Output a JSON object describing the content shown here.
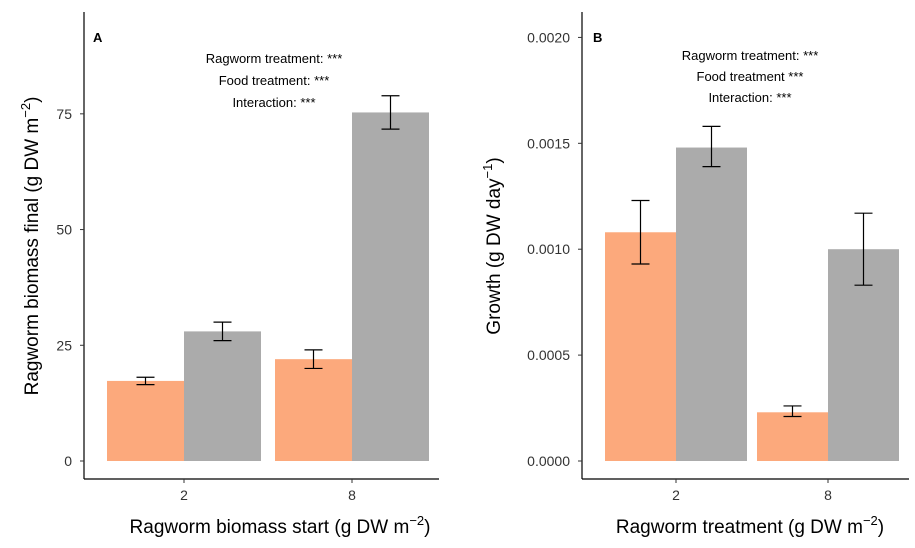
{
  "chart_data": [
    {
      "panel": "A",
      "type": "bar",
      "categories": [
        "2",
        "8"
      ],
      "series": [
        {
          "color": "#FCA97C",
          "values": [
            17.3,
            22.0
          ],
          "err_low": [
            16.5,
            20.0
          ],
          "err_high": [
            18.1,
            24.0
          ]
        },
        {
          "color": "#ABABAB",
          "values": [
            28.0,
            75.3
          ],
          "err_low": [
            26.0,
            71.7
          ],
          "err_high": [
            30.0,
            78.9
          ]
        }
      ],
      "ylim": [
        0,
        97
      ],
      "yticks": [
        0,
        25,
        50,
        75
      ],
      "ytick_labels": [
        "0",
        "25",
        "50",
        "75"
      ],
      "xlabel": "Ragworm biomass start (g DW m",
      "xlabel_sup": "−2",
      "xlabel_end": ")",
      "ylabel": "Ragworm biomass final (g DW m",
      "ylabel_sup": "−2",
      "ylabel_end": ")",
      "annotations": [
        "Ragworm treatment: ***",
        "Food treatment: ***",
        "Interaction: ***"
      ]
    },
    {
      "panel": "B",
      "type": "bar",
      "categories": [
        "2",
        "8"
      ],
      "series": [
        {
          "color": "#FCA97C",
          "values": [
            0.00108,
            0.00023
          ],
          "err_low": [
            0.00093,
            0.00021
          ],
          "err_high": [
            0.00123,
            0.00026
          ]
        },
        {
          "color": "#ABABAB",
          "values": [
            0.00148,
            0.001
          ],
          "err_low": [
            0.00139,
            0.00083
          ],
          "err_high": [
            0.00158,
            0.00117
          ]
        }
      ],
      "ylim": [
        0,
        0.00212
      ],
      "yticks": [
        0,
        0.0005,
        0.001,
        0.0015,
        0.002
      ],
      "ytick_labels": [
        "0.0000",
        "0.0005",
        "0.0010",
        "0.0015",
        "0.0020"
      ],
      "xlabel": "Ragworm treatment (g DW m",
      "xlabel_sup": "−2",
      "xlabel_end": ")",
      "ylabel": "Growth (g DW day",
      "ylabel_sup": "−1",
      "ylabel_end": ")",
      "annotations": [
        "Ragworm treatment: ***",
        "Food treatment ***",
        "Interaction: ***"
      ]
    }
  ]
}
